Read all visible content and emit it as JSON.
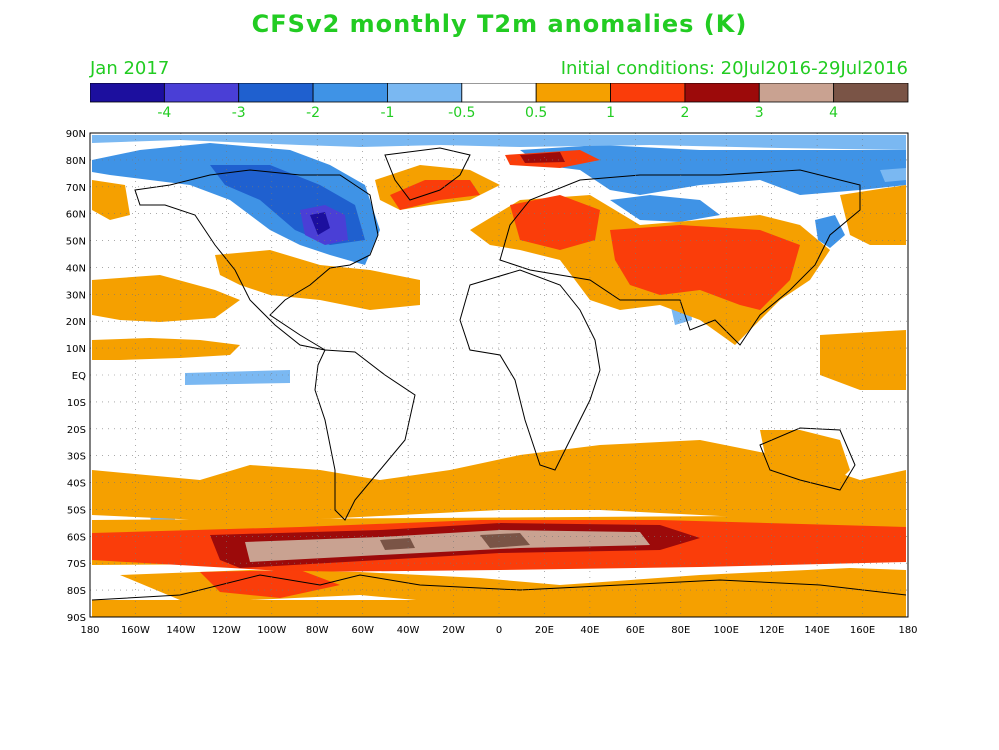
{
  "title": "CFSv2 monthly T2m anomalies (K)",
  "subtitle_left": "Jan 2017",
  "subtitle_right": "Initial conditions: 20Jul2016-29Jul2016",
  "colors": {
    "text_green": "#22cc22",
    "bins": [
      "#1c0f9e",
      "#4a3fd6",
      "#1f60cf",
      "#3f93e6",
      "#7ab8f2",
      "#ffffff",
      "#f5a000",
      "#fa3d0a",
      "#9c0a0a",
      "#c9a291",
      "#7a5446"
    ]
  },
  "colorbar": {
    "labels": [
      "-4",
      "-3",
      "-2",
      "-1",
      "-0.5",
      "0.5",
      "1",
      "2",
      "3",
      "4"
    ]
  },
  "axes": {
    "lat_labels": [
      "90N",
      "80N",
      "70N",
      "60N",
      "50N",
      "40N",
      "30N",
      "20N",
      "10N",
      "EQ",
      "10S",
      "20S",
      "30S",
      "40S",
      "50S",
      "60S",
      "70S",
      "80S",
      "90S"
    ],
    "lon_labels": [
      "180",
      "160W",
      "140W",
      "120W",
      "100W",
      "80W",
      "60W",
      "40W",
      "20W",
      "0",
      "20E",
      "40E",
      "60E",
      "80E",
      "100E",
      "120E",
      "140E",
      "160E",
      "180"
    ]
  }
}
